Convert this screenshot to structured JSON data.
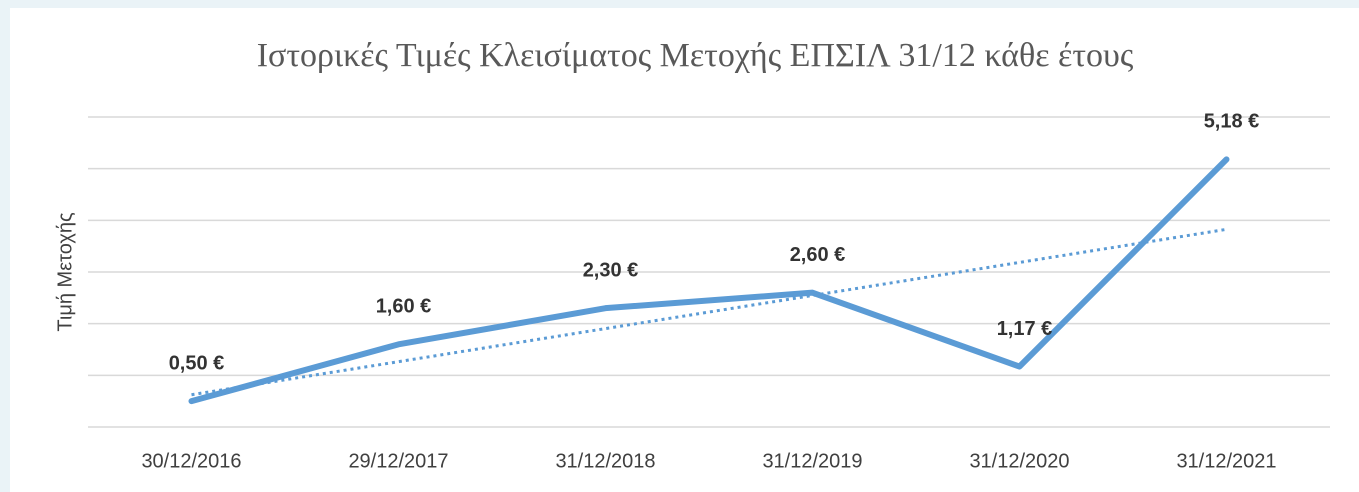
{
  "chart_data": {
    "type": "line",
    "title": "Ιστορικές Τιμές Κλεισίματος Μετοχής ΕΠΣΙΛ 31/12 κάθε έτους",
    "y_label": "Τιμή Μετοχής",
    "categories": [
      "30/12/2016",
      "29/12/2017",
      "31/12/2018",
      "31/12/2019",
      "31/12/2020",
      "31/12/2021"
    ],
    "values": [
      0.5,
      1.6,
      2.3,
      2.6,
      1.17,
      5.18
    ],
    "value_labels": [
      "0,50 €",
      "1,60 €",
      "2,30 €",
      "2,60 €",
      "1,17 €",
      "5,18 €"
    ],
    "color": "#5b9bd5",
    "trendline": "linear",
    "ylim": [
      0,
      6
    ],
    "yticks": [
      0,
      1,
      2,
      3,
      4,
      5,
      6
    ],
    "grid": true
  }
}
